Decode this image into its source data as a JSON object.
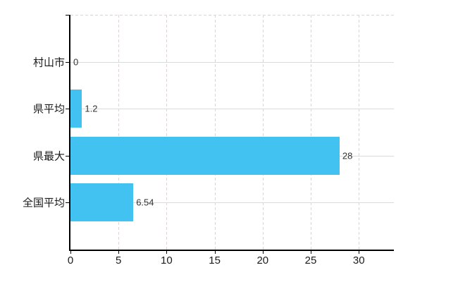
{
  "chart_data": {
    "type": "bar",
    "orientation": "horizontal",
    "title": "",
    "xlabel": "",
    "ylabel": "",
    "categories": [
      "村山市",
      "県平均",
      "県最大",
      "全国平均"
    ],
    "values": [
      0,
      1.2,
      28,
      6.54
    ],
    "value_labels": [
      "0",
      "1.2",
      "28",
      "6.54"
    ],
    "x_ticks": [
      0,
      5,
      10,
      15,
      20,
      25,
      30
    ],
    "x_tick_labels": [
      "0",
      "5",
      "10",
      "15",
      "20",
      "25",
      "30"
    ],
    "xlim": [
      0,
      33.65
    ],
    "legend": "none",
    "grid": {
      "horizontal": "solid",
      "vertical": "dashed",
      "top_border": "dashed"
    },
    "colors": {
      "bar": "#41c2f0",
      "axis": "#000000",
      "grid_horizontal": "#d8dcd8",
      "grid_vertical": "#ddd5d5",
      "tick_label": "#1a1a1a",
      "value_label": "#333333",
      "background": "#ffffff"
    }
  }
}
